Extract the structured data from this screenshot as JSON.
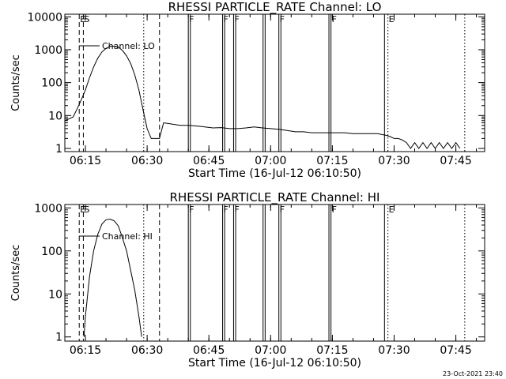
{
  "footer_timestamp": "23-Oct-2021 23:40",
  "chart_data": [
    {
      "type": "line",
      "title": "RHESSI PARTICLE_RATE Channel: LO",
      "xlabel": "Start Time (16-Jul-12 06:10:50)",
      "ylabel": "Counts/sec",
      "x_unit": "UT time (HH:MM)",
      "xlim": [
        "06:10",
        "07:52"
      ],
      "x_tick_labels": [
        "06:15",
        "06:30",
        "06:45",
        "07:00",
        "07:15",
        "07:30",
        "07:45"
      ],
      "ylim": [
        0.8,
        12000
      ],
      "y_scale": "log",
      "y_tick_labels": [
        "1",
        "10",
        "100",
        "1000",
        "10000"
      ],
      "legend": {
        "label": "Channel: LO",
        "placement": "top-left"
      },
      "series": [
        {
          "name": "Channel: LO",
          "x": [
            "06:10",
            "06:12",
            "06:13",
            "06:14",
            "06:15",
            "06:16",
            "06:17",
            "06:18",
            "06:19",
            "06:20",
            "06:21",
            "06:22",
            "06:23",
            "06:24",
            "06:25",
            "06:26",
            "06:27",
            "06:28",
            "06:29",
            "06:30",
            "06:31",
            "06:32",
            "06:33",
            "06:34",
            "06:36",
            "06:38",
            "06:40",
            "06:42",
            "06:44",
            "06:46",
            "06:48",
            "06:50",
            "06:52",
            "06:54",
            "06:56",
            "06:58",
            "07:00",
            "07:02",
            "07:04",
            "07:06",
            "07:08",
            "07:10",
            "07:12",
            "07:14",
            "07:16",
            "07:18",
            "07:20",
            "07:22",
            "07:24",
            "07:26",
            "07:28",
            "07:29",
            "07:30",
            "07:31",
            "07:32",
            "07:33",
            "07:34",
            "07:35",
            "07:36",
            "07:37",
            "07:38",
            "07:39",
            "07:40",
            "07:41",
            "07:42",
            "07:43",
            "07:44",
            "07:45",
            "07:46"
          ],
          "values": [
            7,
            9,
            16,
            30,
            60,
            140,
            300,
            550,
            850,
            1100,
            1250,
            1300,
            1200,
            950,
            650,
            380,
            170,
            60,
            15,
            4,
            2,
            2,
            2,
            6,
            5.5,
            5,
            5,
            4.8,
            4.5,
            4.2,
            4.3,
            4,
            4,
            4.2,
            4.5,
            4.2,
            4,
            3.8,
            3.5,
            3.2,
            3.2,
            3,
            3,
            3,
            3,
            3,
            2.8,
            2.8,
            2.8,
            2.8,
            2.5,
            2.3,
            2,
            2,
            1.8,
            1.5,
            1,
            1.5,
            1,
            1.5,
            1,
            1.5,
            1,
            1.5,
            1,
            1.5,
            1,
            1.5,
            1
          ]
        }
      ],
      "markers": [
        {
          "label": "E",
          "time": "06:13:30",
          "style": "dashed"
        },
        {
          "label": "S",
          "time": "06:14:30",
          "style": "dashed"
        },
        {
          "label": "",
          "time": "06:29:10",
          "style": "dotted"
        },
        {
          "label": "",
          "time": "06:33:00",
          "style": "dashed"
        },
        {
          "label": "F",
          "time": "06:40:00",
          "style": "solid"
        },
        {
          "label": "",
          "time": "06:40:30",
          "style": "solid"
        },
        {
          "label": "F",
          "time": "06:48:20",
          "style": "solid"
        },
        {
          "label": "",
          "time": "06:48:50",
          "style": "solid"
        },
        {
          "label": "F",
          "time": "06:51:00",
          "style": "solid"
        },
        {
          "label": "",
          "time": "06:51:30",
          "style": "solid"
        },
        {
          "label": "",
          "time": "06:58:10",
          "style": "solid"
        },
        {
          "label": "",
          "time": "06:58:40",
          "style": "solid"
        },
        {
          "label": "F",
          "time": "07:02:00",
          "style": "solid"
        },
        {
          "label": "",
          "time": "07:02:30",
          "style": "solid"
        },
        {
          "label": "",
          "time": "07:14:10",
          "style": "solid"
        },
        {
          "label": "F",
          "time": "07:14:40",
          "style": "solid"
        },
        {
          "label": "",
          "time": "07:27:40",
          "style": "solid"
        },
        {
          "label": "E",
          "time": "07:28:30",
          "style": "dotted"
        },
        {
          "label": "",
          "time": "07:47:10",
          "style": "dotted"
        }
      ]
    },
    {
      "type": "line",
      "title": "RHESSI PARTICLE_RATE Channel: HI",
      "xlabel": "Start Time (16-Jul-12 06:10:50)",
      "ylabel": "Counts/sec",
      "x_unit": "UT time (HH:MM)",
      "xlim": [
        "06:10",
        "07:52"
      ],
      "x_tick_labels": [
        "06:15",
        "06:30",
        "06:45",
        "07:00",
        "07:15",
        "07:30",
        "07:45"
      ],
      "ylim": [
        0.8,
        1200
      ],
      "y_scale": "log",
      "y_tick_labels": [
        "1",
        "10",
        "100",
        "1000"
      ],
      "legend": {
        "label": "Channel: HI",
        "placement": "top-left"
      },
      "series": [
        {
          "name": "Channel: HI",
          "x": [
            "06:14:40",
            "06:15",
            "06:16",
            "06:17",
            "06:18",
            "06:19",
            "06:20",
            "06:21",
            "06:22",
            "06:23",
            "06:24",
            "06:25",
            "06:26",
            "06:27",
            "06:28",
            "06:28:40"
          ],
          "values": [
            1,
            3,
            25,
            100,
            240,
            420,
            530,
            550,
            500,
            380,
            200,
            100,
            35,
            12,
            3,
            1
          ]
        }
      ],
      "markers": [
        {
          "label": "E",
          "time": "06:13:30",
          "style": "dashed"
        },
        {
          "label": "S",
          "time": "06:14:30",
          "style": "dashed"
        },
        {
          "label": "",
          "time": "06:29:10",
          "style": "dotted"
        },
        {
          "label": "",
          "time": "06:33:00",
          "style": "dashed"
        },
        {
          "label": "F",
          "time": "06:40:00",
          "style": "solid"
        },
        {
          "label": "",
          "time": "06:40:30",
          "style": "solid"
        },
        {
          "label": "F",
          "time": "06:48:20",
          "style": "solid"
        },
        {
          "label": "",
          "time": "06:48:50",
          "style": "solid"
        },
        {
          "label": "F",
          "time": "06:51:00",
          "style": "solid"
        },
        {
          "label": "",
          "time": "06:51:30",
          "style": "solid"
        },
        {
          "label": "",
          "time": "06:58:10",
          "style": "solid"
        },
        {
          "label": "",
          "time": "06:58:40",
          "style": "solid"
        },
        {
          "label": "F",
          "time": "07:02:00",
          "style": "solid"
        },
        {
          "label": "",
          "time": "07:02:30",
          "style": "solid"
        },
        {
          "label": "",
          "time": "07:14:10",
          "style": "solid"
        },
        {
          "label": "F",
          "time": "07:14:40",
          "style": "solid"
        },
        {
          "label": "",
          "time": "07:27:40",
          "style": "solid"
        },
        {
          "label": "E",
          "time": "07:28:30",
          "style": "dotted"
        },
        {
          "label": "",
          "time": "07:47:10",
          "style": "dotted"
        }
      ]
    }
  ]
}
